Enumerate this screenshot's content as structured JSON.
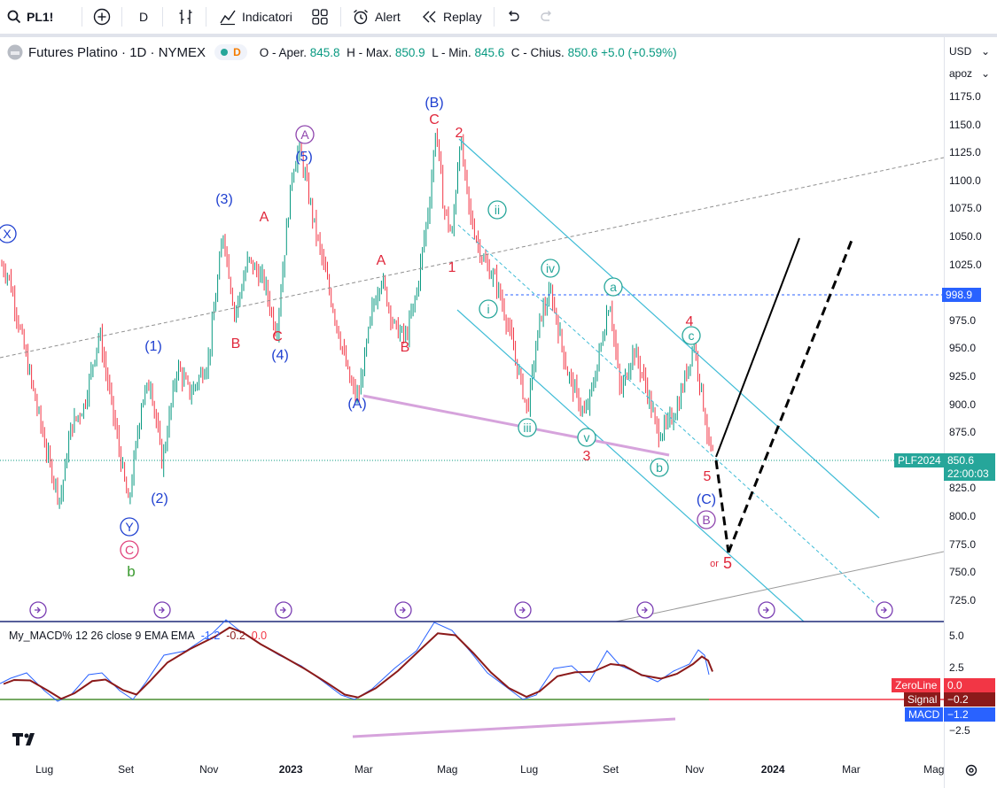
{
  "toolbar": {
    "symbol": "PL1!",
    "interval": "D",
    "indicators_label": "Indicatori",
    "alert_label": "Alert",
    "replay_label": "Replay"
  },
  "legend": {
    "title": "Futures Platino · 1D · NYMEX",
    "pill_letter": "D",
    "o_label": "O - Aper.",
    "o_value": "845.8",
    "h_label": "H - Max.",
    "h_value": "850.9",
    "l_label": "L - Min.",
    "l_value": "845.6",
    "c_label": "C - Chius.",
    "c_value": "850.6",
    "change": "+5.0 (+0.59%)"
  },
  "macd_legend": {
    "name": "My_MACD% 12 26 close 9 EMA EMA",
    "v1": "-1.2",
    "v2": "-0.2",
    "v3": "0.0"
  },
  "axis": {
    "currency": "USD",
    "scale_mode": "apoz",
    "price_ticks": [
      "1175.0",
      "1150.0",
      "1125.0",
      "1100.0",
      "1075.0",
      "1050.0",
      "1025.0",
      "975.0",
      "950.0",
      "925.0",
      "900.0",
      "875.0",
      "825.0",
      "800.0",
      "775.0",
      "750.0",
      "725.0"
    ],
    "macd_ticks": [
      "5.0",
      "2.5",
      "−2.5"
    ],
    "level_tag": "998.9",
    "symbol_tag": "PLF2024",
    "last_price": "850.6",
    "countdown": "22:00:03",
    "zeroline_label": "ZeroLine",
    "zeroline_value": "0.0",
    "signal_label": "Signal",
    "signal_value": "−0.2",
    "macd_label": "MACD",
    "macd_value": "−1.2"
  },
  "time_axis": [
    "Lug",
    "Set",
    "Nov",
    "2023",
    "Mar",
    "Mag",
    "Lug",
    "Set",
    "Nov",
    "2024",
    "Mar",
    "Mag"
  ],
  "wave_labels": {
    "X": "X",
    "Y": "Y",
    "C_red_circle": "C",
    "b_green": "b",
    "w1": "(1)",
    "w2": "(2)",
    "w3": "(3)",
    "w4": "(4)",
    "w5": "(5)",
    "A_circle": "A",
    "B_top": "(B)",
    "C_top": "C",
    "A_paren": "(A)",
    "C_paren": "(C)",
    "B_circle": "B",
    "rA1": "A",
    "rB1": "B",
    "rC1": "C",
    "rA2": "A",
    "rB2": "B",
    "r1": "1",
    "r2": "2",
    "r3": "3",
    "r4": "4",
    "r5": "5",
    "r5b": "5",
    "or": "or",
    "i": "i",
    "ii": "ii",
    "iii": "iii",
    "iv": "iv",
    "v": "v",
    "a": "a",
    "b": "b",
    "c": "c"
  },
  "colors": {
    "up": "#089981",
    "down": "#f23645",
    "wave_blue": "#1e3fd0",
    "wave_red": "#e0283c",
    "channel": "#3fbcd6",
    "macd_line": "#2962ff",
    "signal_line": "#8b1a1a",
    "zero_line": "#f23645",
    "mid_line": "#4caf50",
    "divergence": "#d6a3dc"
  }
}
